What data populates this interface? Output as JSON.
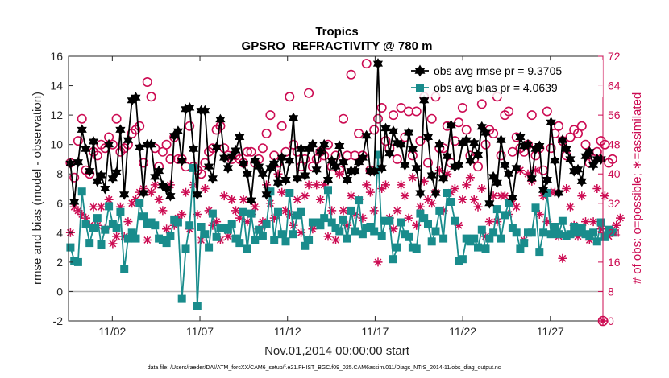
{
  "chart_data": {
    "type": "line",
    "title": "Tropics",
    "subtitle": "GPSRO_REFRACTIVITY @ 780 m",
    "ylabel": "rmse and bias (model - observation)",
    "y2label": "# of obs: o=possible; ∗=assimilated",
    "xlabel": "Nov.01,2014 00:00:00 start",
    "footnote": "data file: /Users/raeder/DAI/ATM_forcXX/CAM6_setup/f.e21.FHIST_BGC.f09_025.CAM6assim.011/Diags_NTrS_2014-11/obs_diag_output.nc",
    "ylim": [
      -2,
      16
    ],
    "y2lim": [
      0,
      72
    ],
    "xlim": [
      0,
      61
    ],
    "xticks": [
      {
        "x": 5,
        "label": "11/02"
      },
      {
        "x": 15,
        "label": "11/07"
      },
      {
        "x": 25,
        "label": "11/12"
      },
      {
        "x": 35,
        "label": "11/17"
      },
      {
        "x": 45,
        "label": "11/22"
      },
      {
        "x": 55,
        "label": "11/27"
      }
    ],
    "yticks": [
      -2,
      0,
      2,
      4,
      6,
      8,
      10,
      12,
      14,
      16
    ],
    "y2ticks": [
      0,
      8,
      16,
      24,
      32,
      40,
      48,
      56,
      64,
      72
    ],
    "legend_position": "top-right",
    "series": [
      {
        "name": "obs avg rmse",
        "legend": "obs avg rmse pr = 9.3705",
        "color": "#000000",
        "marker": "hexagram",
        "values": [
          8.7,
          6.1,
          8.8,
          11.0,
          9.7,
          8.2,
          10.2,
          7.5,
          7.9,
          7.0,
          10.0,
          7.7,
          8.1,
          11.0,
          6.6,
          10.3,
          13.0,
          13.2,
          9.8,
          6.7,
          10.0,
          10.0,
          7.8,
          8.2,
          7.2,
          7.0,
          6.5,
          10.6,
          10.9,
          8.9,
          12.4,
          12.5,
          9.7,
          6.6,
          12.3,
          12.3,
          8.5,
          7.7,
          9.8,
          11.7,
          9.1,
          8.4,
          9.2,
          9.6,
          10.5,
          8.7,
          8.0,
          6.2,
          8.9,
          8.5,
          8.0,
          6.6,
          8.4,
          8.7,
          7.4,
          9.1,
          7.6,
          8.9,
          11.8,
          7.7,
          9.7,
          7.9,
          9.7,
          10.0,
          8.3,
          9.5,
          10.0,
          7.6,
          8.9,
          8.5,
          9.9,
          8.8,
          7.6,
          8.2,
          8.2,
          8.8,
          9.1,
          10.6,
          8.2,
          8.2,
          15.5,
          8.4,
          11.1,
          9.4,
          10.9,
          10.1,
          10.0,
          8.6,
          10.8,
          9.7,
          8.4,
          6.7,
          13.0,
          10.5,
          7.9,
          6.7,
          10.0,
          7.7,
          9.2,
          11.3,
          8.5,
          8.6,
          10.1,
          10.3,
          8.9,
          10.1,
          9.3,
          11.2,
          10.8,
          6.0,
          7.8,
          7.4,
          10.3,
          8.6,
          8.0,
          6.4,
          8.4,
          10.5,
          9.9,
          10.0,
          7.7,
          9.7,
          9.9,
          6.9,
          7.6,
          11.5,
          8.9,
          6.7,
          10.3,
          9.7,
          9.0,
          8.2,
          8.3,
          7.5,
          9.2,
          9.5,
          8.6,
          9.0,
          9.0
        ]
      },
      {
        "name": "obs avg bias",
        "legend": "obs avg bias pr = 4.0639",
        "color": "#198c8c",
        "marker": "square",
        "values": [
          3.0,
          2.1,
          2.0,
          6.8,
          4.6,
          3.3,
          4.3,
          5.0,
          3.2,
          4.2,
          5.8,
          4.6,
          4.3,
          5.4,
          1.5,
          3.6,
          4.0,
          3.6,
          6.0,
          5.1,
          4.6,
          4.7,
          4.5,
          3.6,
          3.5,
          3.3,
          3.8,
          4.9,
          4.7,
          -0.5,
          2.9,
          4.5,
          8.4,
          -1.0,
          4.4,
          3.9,
          3.0,
          5.3,
          3.7,
          4.3,
          4.3,
          4.2,
          4.6,
          3.6,
          3.3,
          5.4,
          2.9,
          5.3,
          3.5,
          4.2,
          3.8,
          4.6,
          6.8,
          3.5,
          5.4,
          3.9,
          3.4,
          6.7,
          3.9,
          5.2,
          5.4,
          3.1,
          3.5,
          4.7,
          4.7,
          4.5,
          5.0,
          6.9,
          4.7,
          4.3,
          4.1,
          4.9,
          3.6,
          5.5,
          4.1,
          6.2,
          3.9,
          4.3,
          4.4,
          4.1,
          9.3,
          3.8,
          4.8,
          4.8,
          2.2,
          3.0,
          4.7,
          3.9,
          3.7,
          3.0,
          2.9,
          5.3,
          5.0,
          4.6,
          3.4,
          4.1,
          5.5,
          3.6,
          6.7,
          6.1,
          4.8,
          2.1,
          2.2,
          3.6,
          3.4,
          3.6,
          3.0,
          4.2,
          2.9,
          3.6,
          4.0,
          5.6,
          3.6,
          5.2,
          6.0,
          4.3,
          4.0,
          2.9,
          3.3,
          4.0,
          4.0,
          5.7,
          2.7,
          4.0,
          6.7,
          3.9,
          4.4,
          3.9,
          4.8,
          3.8,
          3.9,
          4.4,
          4.0,
          4.3,
          3.9,
          3.8,
          4.0,
          3.4,
          4.7,
          3.7,
          4.2,
          4.0
        ]
      },
      {
        "name": "possible",
        "color": "#cc0b52",
        "marker": "circle",
        "axis": "right",
        "values": [
          43,
          39,
          49,
          55,
          41,
          40,
          46,
          45,
          48,
          47,
          50,
          48,
          55,
          46,
          47,
          48,
          51,
          52,
          53,
          43,
          65,
          61,
          47,
          42,
          46,
          48,
          44,
          50,
          44,
          44,
          42,
          53,
          42,
          41,
          40,
          43,
          46,
          47,
          52,
          53,
          47,
          45,
          44,
          45,
          44,
          43,
          46,
          46,
          43,
          44,
          47,
          51,
          56,
          45,
          43,
          53,
          46,
          61,
          48,
          46,
          42,
          44,
          62,
          42,
          44,
          46,
          45,
          48,
          42,
          45,
          41,
          55,
          45,
          67,
          45,
          51,
          45,
          70,
          41,
          52,
          55,
          58,
          49,
          47,
          56,
          44,
          58,
          50,
          57,
          45,
          57,
          49,
          61,
          43,
          55,
          61,
          47,
          47,
          53,
          43,
          49,
          54,
          58,
          52,
          45,
          44,
          42,
          59,
          48,
          52,
          51,
          61,
          45,
          56,
          57,
          46,
          50,
          47,
          46,
          48,
          56,
          45,
          47,
          41,
          57,
          47,
          51,
          53,
          49,
          45,
          50,
          52,
          51,
          53,
          48,
          43,
          44,
          46,
          49,
          48,
          43,
          44
        ]
      },
      {
        "name": "assimilated",
        "color": "#cc0b52",
        "marker": "asterisk",
        "axis": "right",
        "values": [
          24,
          31,
          30,
          29,
          28,
          26,
          31,
          26,
          31,
          25,
          33,
          21,
          23,
          31,
          23,
          27,
          32,
          33,
          35,
          36,
          22,
          35,
          37,
          33,
          30,
          25,
          37,
          26,
          28,
          29,
          35,
          25,
          37,
          29,
          22,
          36,
          30,
          26,
          27,
          22,
          34,
          23,
          33,
          30,
          28,
          33,
          27,
          29,
          31,
          25,
          27,
          37,
          32,
          28,
          40,
          35,
          30,
          29,
          26,
          33,
          24,
          34,
          37,
          25,
          37,
          33,
          37,
          23,
          30,
          22,
          40,
          30,
          26,
          34,
          29,
          33,
          28,
          37,
          35,
          30,
          16,
          36,
          37,
          28,
          25,
          30,
          37,
          34,
          28,
          39,
          26,
          31,
          38,
          33,
          32,
          35,
          41,
          30,
          40,
          35,
          36,
          26,
          33,
          37,
          39,
          33,
          31,
          36,
          23,
          27,
          34,
          27,
          34,
          34,
          29,
          32,
          31,
          41,
          22,
          40,
          38,
          41,
          29,
          34,
          27,
          35,
          35,
          23,
          17,
          36,
          31,
          26,
          23,
          34,
          27,
          22,
          27,
          36,
          25,
          34,
          23,
          24,
          26,
          28
        ]
      }
    ]
  }
}
